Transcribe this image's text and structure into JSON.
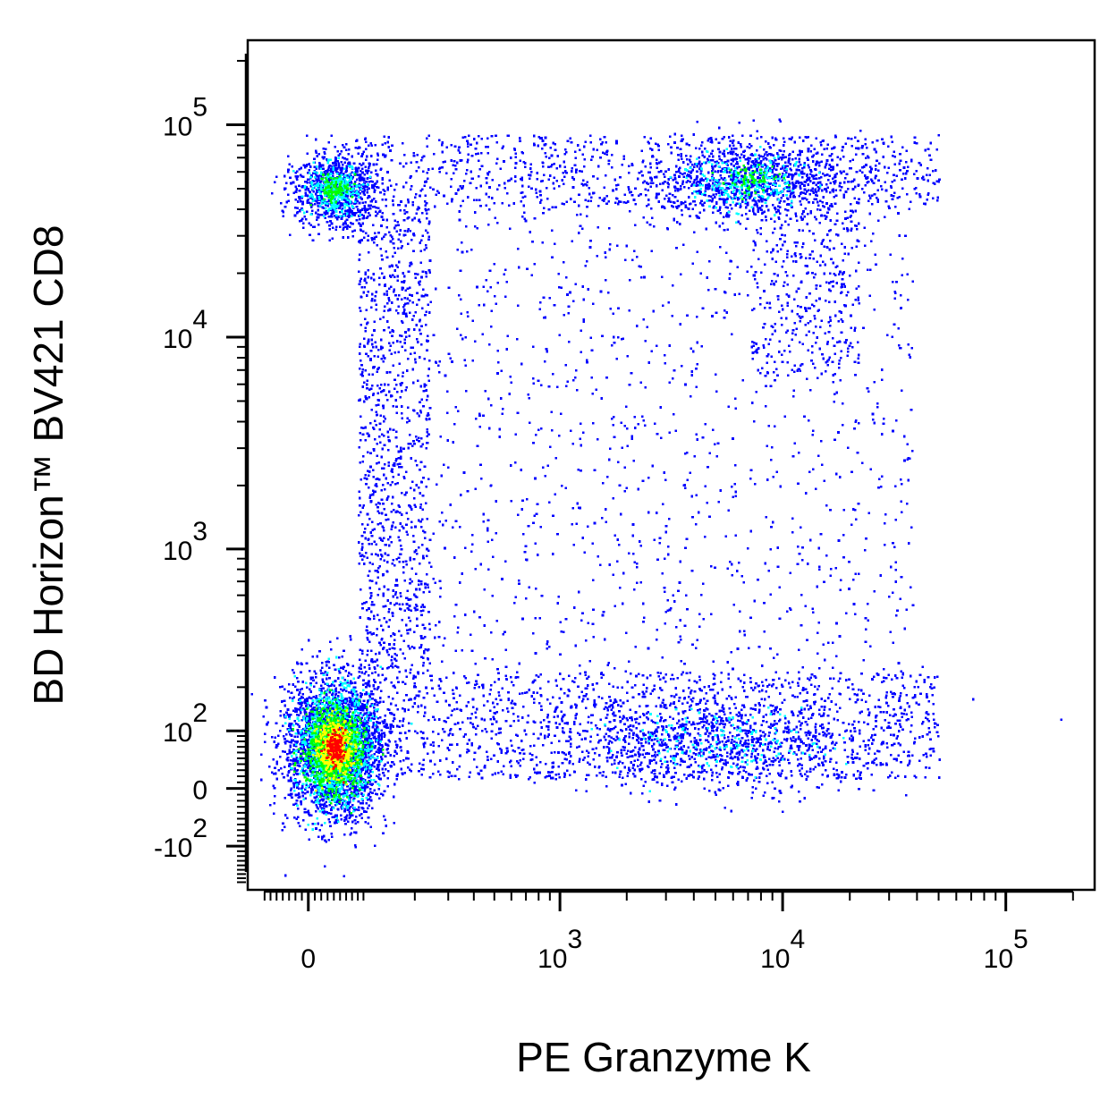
{
  "chart_data": {
    "type": "scatter",
    "subtype": "flow-cytometry-pseudocolor-density",
    "xlabel": "PE Granzyme K",
    "ylabel": "BD Horizon™ BV421 CD8",
    "x_scale": "biexponential",
    "y_scale": "biexponential",
    "xlim": [
      -100,
      250000
    ],
    "ylim": [
      -200,
      250000
    ],
    "x_ticks": [
      {
        "value": 0,
        "base": "0",
        "exp": ""
      },
      {
        "value": 1000,
        "base": "10",
        "exp": "3"
      },
      {
        "value": 10000,
        "base": "10",
        "exp": "4"
      },
      {
        "value": 100000,
        "base": "10",
        "exp": "5"
      }
    ],
    "y_ticks": [
      {
        "value": -100,
        "base": "-10",
        "exp": "2"
      },
      {
        "value": 0,
        "base": "0",
        "exp": ""
      },
      {
        "value": 100,
        "base": "10",
        "exp": "2"
      },
      {
        "value": 1000,
        "base": "10",
        "exp": "3"
      },
      {
        "value": 10000,
        "base": "10",
        "exp": "4"
      },
      {
        "value": 100000,
        "base": "10",
        "exp": "5"
      }
    ],
    "density_colors": [
      "#0000ff",
      "#00ffff",
      "#00ff00",
      "#ffff00",
      "#ff0000"
    ],
    "populations": [
      {
        "center_x": 40,
        "center_y": 70,
        "relative_density": 1.0,
        "peak_color": "#ff0000"
      },
      {
        "center_x": 40,
        "center_y": 50000,
        "relative_density": 0.35,
        "peak_color": "#00ff00"
      },
      {
        "center_x": 7000,
        "center_y": 55000,
        "relative_density": 0.3,
        "peak_color": "#00ff00"
      },
      {
        "center_x": 5000,
        "center_y": 80,
        "relative_density": 0.25,
        "peak_color": "#00ffff"
      }
    ],
    "grid": false,
    "legend": "none"
  }
}
